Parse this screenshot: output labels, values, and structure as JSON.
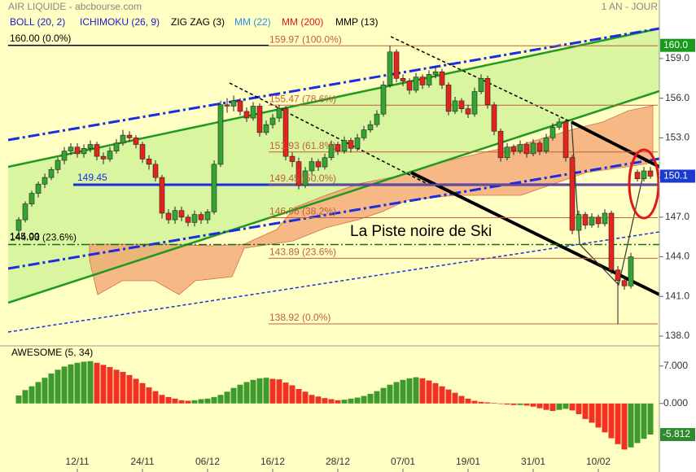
{
  "header": {
    "title": "AIR LIQUIDE - abcbourse.com",
    "period": "1 AN - JOUR"
  },
  "annotation": "La Piste noire de Ski",
  "chart_data": [
    {
      "type": "candlestick",
      "indicators": [
        {
          "name": "BOLL (20, 2)",
          "color": "#1a1acc"
        },
        {
          "name": "ICHIMOKU (26, 9)",
          "color": "#1a1acc"
        },
        {
          "name": "ZIG ZAG (3)",
          "color": "#000000"
        },
        {
          "name": "MM (22)",
          "color": "#2b8cf0"
        },
        {
          "name": "MM (200)",
          "color": "#e01818"
        },
        {
          "name": "MMP (13)",
          "color": "#000000"
        }
      ],
      "ylim": [
        137.26,
        163.43
      ],
      "yticks": [
        {
          "value": 159,
          "label": "159.0"
        },
        {
          "value": 156,
          "label": "156.0"
        },
        {
          "value": 153,
          "label": "153.0"
        },
        {
          "value": 150,
          "label": "150.0"
        },
        {
          "value": 147,
          "label": "147.0"
        },
        {
          "value": 144,
          "label": "144.0"
        },
        {
          "value": 141,
          "label": "141.0"
        },
        {
          "value": 138,
          "label": "138.0"
        }
      ],
      "badges": [
        {
          "value": 160,
          "label": "160.0",
          "color": "#1a9a1a"
        },
        {
          "value": 150.1,
          "color": "#1a3ad0"
        }
      ],
      "levels": [
        {
          "value": 160,
          "label": "160.00 (0.0%)",
          "color": "#000000"
        },
        {
          "value": 144.93,
          "label": "144.93 (23.6%)",
          "color": "#1a6a1a"
        },
        {
          "value": 145,
          "label": "145.00",
          "color": "#1a6a1a"
        },
        {
          "value": 149.45,
          "label": "149.45",
          "color": "#1a2ee0"
        }
      ],
      "retracement": [
        {
          "value": 159.97,
          "label": "159.97 (100.0%)",
          "color": "#c0603a"
        },
        {
          "value": 155.47,
          "label": "155.47 (78.6%)",
          "color": "#c0603a"
        },
        {
          "value": 151.93,
          "label": "151.93 (61.8%)",
          "color": "#c0603a"
        },
        {
          "value": 149.45,
          "label": "149.45 (50.0%)",
          "color": "#c0603a"
        },
        {
          "value": 146.96,
          "label": "146.96 (38.2%)",
          "color": "#c0603a"
        },
        {
          "value": 143.89,
          "label": "143.89 (23.6%)",
          "color": "#c0603a"
        },
        {
          "value": 138.92,
          "label": "138.92 (0.0%)",
          "color": "#c0603a"
        }
      ],
      "up_color": "#35a435",
      "down_color": "#e3261c",
      "candles": [
        [
          146.0,
          147.0,
          145.8,
          146.8
        ],
        [
          146.8,
          148.2,
          146.6,
          148.0
        ],
        [
          148.0,
          149.0,
          147.8,
          148.8
        ],
        [
          148.8,
          149.7,
          148.5,
          149.5
        ],
        [
          149.5,
          150.3,
          149.2,
          150.0
        ],
        [
          150.0,
          150.8,
          149.8,
          150.6
        ],
        [
          150.6,
          151.5,
          150.3,
          151.3
        ],
        [
          151.3,
          152.3,
          151.0,
          152.0
        ],
        [
          152.0,
          152.6,
          151.7,
          152.3
        ],
        [
          152.3,
          152.6,
          151.5,
          151.8
        ],
        [
          151.8,
          152.5,
          151.5,
          152.2
        ],
        [
          152.2,
          152.8,
          151.9,
          152.5
        ],
        [
          152.5,
          152.7,
          151.3,
          151.6
        ],
        [
          151.6,
          151.9,
          151.0,
          151.4
        ],
        [
          151.4,
          152.3,
          151.2,
          152.0
        ],
        [
          152.0,
          152.9,
          151.8,
          152.6
        ],
        [
          152.6,
          153.6,
          152.4,
          153.2
        ],
        [
          153.2,
          153.5,
          152.7,
          153.0
        ],
        [
          153.0,
          153.2,
          152.2,
          152.5
        ],
        [
          152.5,
          152.7,
          151.1,
          151.4
        ],
        [
          151.4,
          151.7,
          150.6,
          151.0
        ],
        [
          151.0,
          151.3,
          149.7,
          150.0
        ],
        [
          150.0,
          150.2,
          146.9,
          147.3
        ],
        [
          147.3,
          147.6,
          146.5,
          146.8
        ],
        [
          146.8,
          147.8,
          146.5,
          147.5
        ],
        [
          147.5,
          147.8,
          146.7,
          147.0
        ],
        [
          147.0,
          147.2,
          146.3,
          146.6
        ],
        [
          146.6,
          147.5,
          146.3,
          147.2
        ],
        [
          147.2,
          147.4,
          146.5,
          146.8
        ],
        [
          146.8,
          147.6,
          146.5,
          147.4
        ],
        [
          147.4,
          151.3,
          147.2,
          151.0
        ],
        [
          151.0,
          155.8,
          150.8,
          155.5
        ],
        [
          155.5,
          156.0,
          154.9,
          155.4
        ],
        [
          155.4,
          156.2,
          155.0,
          155.8
        ],
        [
          155.8,
          156.0,
          154.7,
          155.0
        ],
        [
          155.0,
          155.3,
          154.2,
          154.5
        ],
        [
          154.5,
          155.7,
          154.3,
          155.4
        ],
        [
          155.4,
          155.6,
          153.1,
          153.4
        ],
        [
          153.4,
          154.3,
          153.2,
          154.0
        ],
        [
          154.0,
          154.8,
          153.7,
          154.5
        ],
        [
          154.5,
          155.5,
          154.2,
          155.2
        ],
        [
          155.2,
          155.4,
          151.3,
          151.6
        ],
        [
          151.6,
          151.9,
          150.8,
          151.2
        ],
        [
          151.2,
          151.5,
          149.1,
          149.4
        ],
        [
          149.4,
          150.8,
          149.2,
          150.5
        ],
        [
          150.5,
          151.5,
          150.2,
          151.2
        ],
        [
          151.2,
          151.4,
          150.5,
          150.8
        ],
        [
          150.8,
          151.8,
          150.6,
          151.5
        ],
        [
          151.5,
          152.8,
          151.3,
          152.5
        ],
        [
          152.5,
          152.7,
          151.7,
          152.0
        ],
        [
          152.0,
          153.1,
          151.8,
          152.8
        ],
        [
          152.8,
          153.0,
          151.9,
          152.2
        ],
        [
          152.2,
          153.3,
          152.0,
          153.0
        ],
        [
          153.0,
          153.9,
          152.8,
          153.6
        ],
        [
          153.6,
          154.3,
          153.4,
          154.0
        ],
        [
          154.0,
          155.1,
          153.8,
          154.8
        ],
        [
          154.8,
          157.3,
          154.6,
          157.0
        ],
        [
          157.0,
          159.97,
          156.8,
          159.5
        ],
        [
          159.5,
          159.7,
          157.2,
          157.5
        ],
        [
          157.5,
          157.8,
          156.9,
          157.3
        ],
        [
          157.3,
          157.5,
          156.3,
          156.6
        ],
        [
          156.6,
          157.9,
          156.4,
          157.6
        ],
        [
          157.6,
          157.8,
          156.7,
          157.0
        ],
        [
          157.0,
          158.1,
          156.8,
          157.8
        ],
        [
          157.8,
          158.4,
          157.5,
          158.0
        ],
        [
          158.0,
          158.2,
          156.7,
          157.0
        ],
        [
          157.0,
          157.2,
          154.7,
          155.0
        ],
        [
          155.0,
          156.1,
          154.8,
          155.8
        ],
        [
          155.8,
          156.0,
          154.9,
          155.2
        ],
        [
          155.2,
          155.5,
          154.5,
          154.8
        ],
        [
          154.8,
          156.8,
          154.6,
          156.5
        ],
        [
          156.5,
          157.8,
          156.3,
          157.5
        ],
        [
          157.5,
          157.7,
          155.2,
          155.5
        ],
        [
          155.5,
          155.7,
          153.2,
          153.5
        ],
        [
          153.5,
          153.7,
          151.2,
          151.5
        ],
        [
          151.5,
          152.6,
          151.3,
          152.3
        ],
        [
          152.3,
          152.5,
          151.7,
          152.0
        ],
        [
          152.0,
          152.8,
          151.8,
          152.5
        ],
        [
          152.5,
          152.7,
          151.5,
          151.8
        ],
        [
          151.8,
          152.9,
          151.6,
          152.6
        ],
        [
          152.6,
          152.8,
          151.7,
          152.0
        ],
        [
          152.0,
          153.3,
          151.8,
          153.0
        ],
        [
          153.0,
          154.1,
          152.8,
          153.8
        ],
        [
          153.8,
          154.5,
          153.6,
          154.2
        ],
        [
          154.2,
          154.4,
          151.2,
          151.5
        ],
        [
          151.5,
          151.7,
          145.7,
          146.0
        ],
        [
          146.0,
          147.5,
          145.8,
          147.2
        ],
        [
          147.2,
          147.4,
          146.1,
          146.4
        ],
        [
          146.4,
          147.3,
          146.2,
          147.0
        ],
        [
          147.0,
          147.2,
          146.2,
          146.5
        ],
        [
          146.5,
          147.6,
          146.3,
          147.3
        ],
        [
          147.3,
          147.5,
          142.7,
          143.0
        ],
        [
          143.0,
          143.3,
          138.92,
          142.2
        ],
        [
          142.2,
          142.5,
          141.5,
          141.8
        ],
        [
          141.8,
          144.3,
          141.6,
          144.0
        ],
        [
          150.4,
          150.6,
          149.7,
          149.9
        ],
        [
          149.9,
          150.8,
          149.7,
          150.5
        ],
        [
          150.5,
          150.8,
          149.9,
          150.1
        ]
      ]
    },
    {
      "type": "bar",
      "title": "AWESOME (5, 34)",
      "up_color": "#3f9a2c",
      "down_color": "#ee3322",
      "ylim": [
        -12.8,
        10.3
      ],
      "yticks": [
        {
          "value": 7,
          "label": "7.000"
        },
        {
          "value": 0,
          "label": "0.000"
        }
      ],
      "badge": {
        "value": -5.812,
        "color": "#2e8a2e"
      },
      "categories": [
        null,
        null,
        null,
        null,
        null,
        null,
        null,
        null,
        null,
        "12/11",
        null,
        null,
        null,
        null,
        null,
        null,
        null,
        null,
        null,
        "24/11",
        null,
        null,
        null,
        null,
        null,
        null,
        null,
        null,
        null,
        "06/12",
        null,
        null,
        null,
        null,
        null,
        null,
        null,
        null,
        null,
        "16/12",
        null,
        null,
        null,
        null,
        null,
        null,
        null,
        null,
        null,
        "28/12",
        null,
        null,
        null,
        null,
        null,
        null,
        null,
        null,
        null,
        "07/01",
        null,
        null,
        null,
        null,
        null,
        null,
        null,
        null,
        null,
        "19/01",
        null,
        null,
        null,
        null,
        null,
        null,
        null,
        null,
        null,
        "31/01",
        null,
        null,
        null,
        null,
        null,
        null,
        null,
        null,
        null,
        "10/02",
        null,
        null,
        null,
        null,
        null,
        null,
        null,
        null
      ],
      "values": [
        1.5,
        2.5,
        3.2,
        4.0,
        4.8,
        5.6,
        6.3,
        6.9,
        7.3,
        7.6,
        7.8,
        7.9,
        7.6,
        7.2,
        6.8,
        6.3,
        5.9,
        5.3,
        4.6,
        3.8,
        3.0,
        2.3,
        1.6,
        1.2,
        0.9,
        0.6,
        0.5,
        0.6,
        0.8,
        0.9,
        1.2,
        1.6,
        2.2,
        2.9,
        3.5,
        4.0,
        4.4,
        4.7,
        4.8,
        4.6,
        4.5,
        3.9,
        3.4,
        2.7,
        2.2,
        1.6,
        1.3,
        1.0,
        0.8,
        0.6,
        0.7,
        0.9,
        1.1,
        1.4,
        1.8,
        2.3,
        2.9,
        3.5,
        4.0,
        4.4,
        4.7,
        4.9,
        4.7,
        4.3,
        3.8,
        3.2,
        2.6,
        2.0,
        1.4,
        0.9,
        0.5,
        0.3,
        0.2,
        0.1,
        -0.1,
        -0.2,
        -0.3,
        -0.3,
        -0.4,
        -0.6,
        -0.9,
        -1.2,
        -1.4,
        -1.2,
        -1.0,
        -1.3,
        -2.0,
        -2.9,
        -3.6,
        -4.5,
        -5.4,
        -6.5,
        -7.6,
        -8.6,
        -8.2,
        -7.4,
        -6.6,
        -5.812
      ]
    }
  ]
}
